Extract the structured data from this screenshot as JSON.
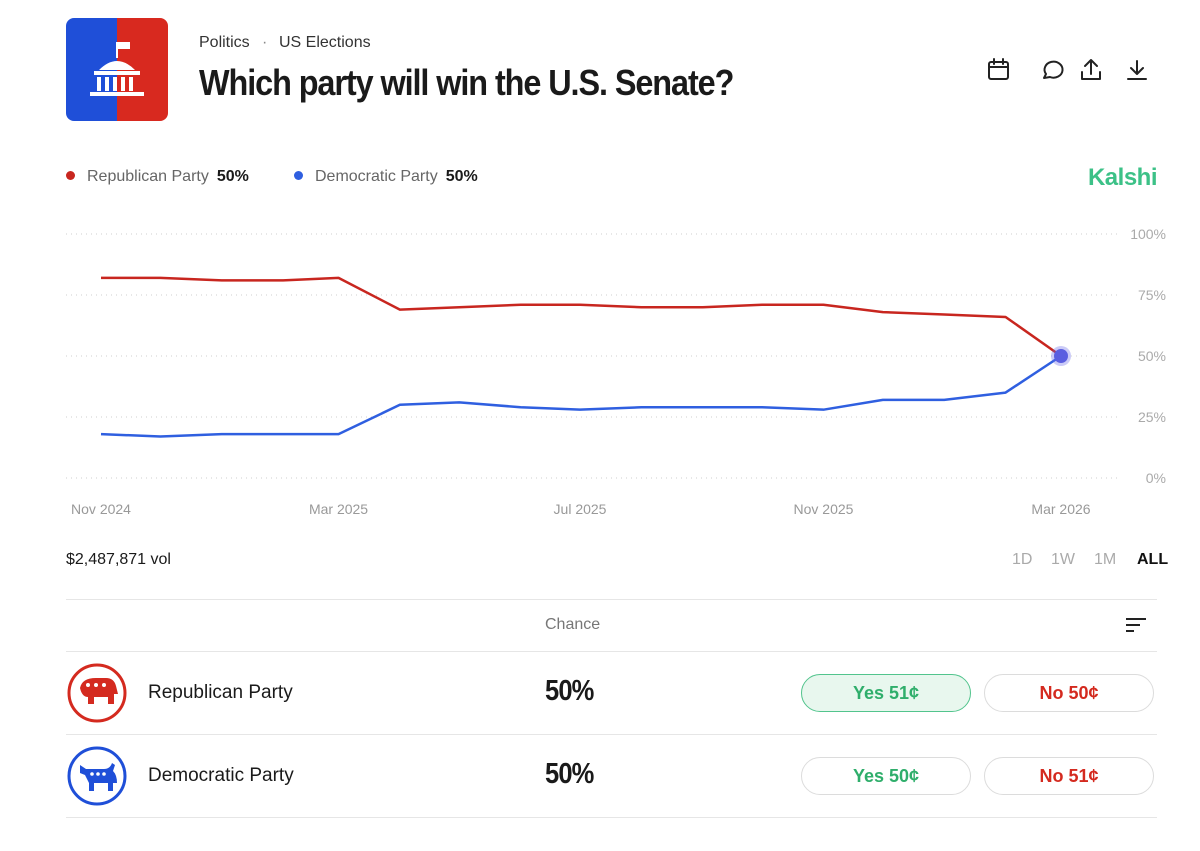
{
  "header": {
    "breadcrumb": [
      "Politics",
      "US Elections"
    ],
    "title": "Which party will win the U.S. Senate?"
  },
  "brand": "Kalshi",
  "chart_data": {
    "type": "line",
    "x": [
      "2024-11",
      "2024-12",
      "2025-01",
      "2025-02",
      "2025-03",
      "2025-04",
      "2025-05",
      "2025-06",
      "2025-07",
      "2025-08",
      "2025-09",
      "2025-10",
      "2025-11",
      "2025-12",
      "2026-01",
      "2026-02",
      "2026-03"
    ],
    "series": [
      {
        "name": "Republican Party",
        "color": "#c8261f",
        "values": [
          82,
          82,
          81,
          81,
          82,
          69,
          70,
          71,
          71,
          70,
          70,
          71,
          71,
          68,
          67,
          66,
          50
        ]
      },
      {
        "name": "Democratic Party",
        "color": "#2f5fe0",
        "values": [
          18,
          17,
          18,
          18,
          18,
          30,
          31,
          29,
          28,
          29,
          29,
          29,
          28,
          32,
          32,
          35,
          50
        ]
      }
    ],
    "xlim": [
      "2024-11",
      "2026-03"
    ],
    "xticks": [
      {
        "value": "2024-11",
        "label": "Nov 2024"
      },
      {
        "value": "2025-03",
        "label": "Mar 2025"
      },
      {
        "value": "2025-07",
        "label": "Jul 2025"
      },
      {
        "value": "2025-11",
        "label": "Nov 2025"
      },
      {
        "value": "2026-03",
        "label": "Mar 2026"
      }
    ],
    "ylim": [
      0,
      100
    ],
    "yticks": [
      {
        "value": 100,
        "label": "100%"
      },
      {
        "value": 75,
        "label": "75%"
      },
      {
        "value": 50,
        "label": "50%"
      },
      {
        "value": 25,
        "label": "25%"
      },
      {
        "value": 0,
        "label": "0%"
      }
    ],
    "grid": true
  },
  "volume": "$2,487,871 vol",
  "ranges": [
    "1D",
    "1W",
    "1M",
    "ALL"
  ],
  "table_header": "Chance",
  "outcomes": [
    {
      "name": "Republican Party",
      "chance": "50%",
      "yes": "Yes 51¢",
      "no": "No 50¢"
    },
    {
      "name": "Democratic Party",
      "chance": "50%",
      "yes": "Yes 50¢",
      "no": "No 51¢"
    }
  ]
}
